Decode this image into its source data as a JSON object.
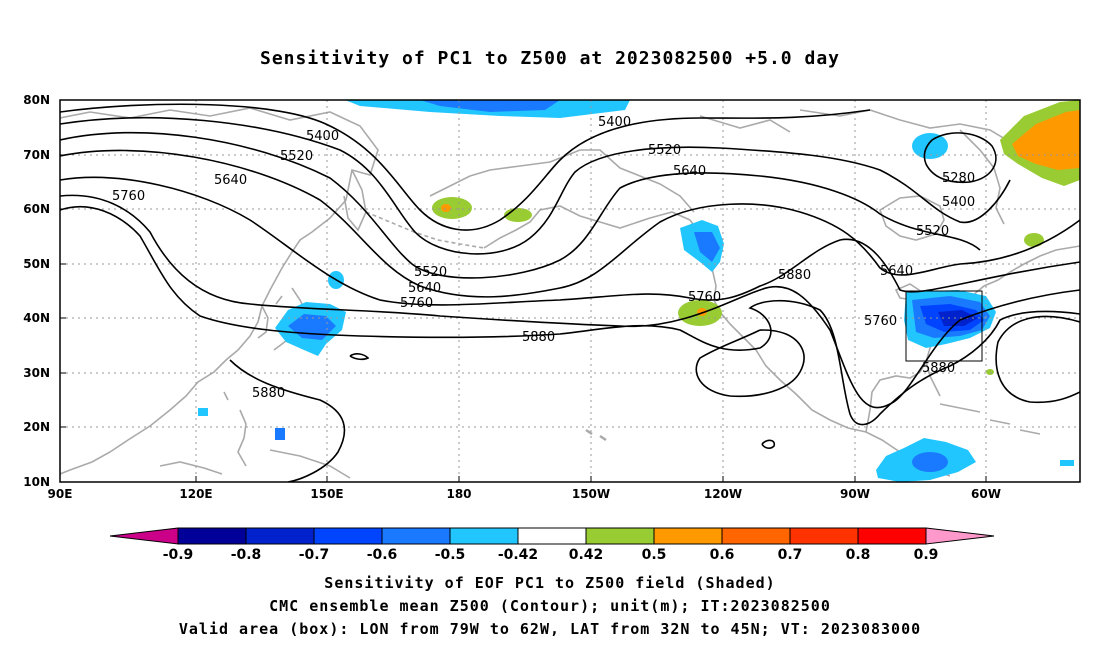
{
  "title": "Sensitivity of PC1 to Z500 at 2023082500 +5.0 day",
  "map": {
    "lat_labels": [
      "80N",
      "70N",
      "60N",
      "50N",
      "40N",
      "30N",
      "20N",
      "10N"
    ],
    "lon_labels": [
      "90E",
      "120E",
      "150E",
      "180",
      "150W",
      "120W",
      "90W",
      "60W"
    ],
    "contour_labels": [
      {
        "text": "5400"
      },
      {
        "text": "5520"
      },
      {
        "text": "5640"
      },
      {
        "text": "5760"
      },
      {
        "text": "5400"
      },
      {
        "text": "5520"
      },
      {
        "text": "5640"
      },
      {
        "text": "5520"
      },
      {
        "text": "5640"
      },
      {
        "text": "5760"
      },
      {
        "text": "5880"
      },
      {
        "text": "5880"
      },
      {
        "text": "5760"
      },
      {
        "text": "5880"
      },
      {
        "text": "5280"
      },
      {
        "text": "5400"
      },
      {
        "text": "5520"
      },
      {
        "text": "5640"
      },
      {
        "text": "5760"
      },
      {
        "text": "5880"
      }
    ],
    "valid_box": {
      "lon_west": -79,
      "lon_east": -62,
      "lat_south": 32,
      "lat_north": 45
    }
  },
  "colorbar": {
    "labels": [
      "-0.9",
      "-0.8",
      "-0.7",
      "-0.6",
      "-0.5",
      "-0.42",
      "0.42",
      "0.5",
      "0.6",
      "0.7",
      "0.8",
      "0.9"
    ],
    "colors": [
      "#000099",
      "#0022cc",
      "#0044ff",
      "#1a7aff",
      "#22c6ff",
      "#ffffff",
      "#99cc33",
      "#ff9900",
      "#ff6600",
      "#ff3300",
      "#ff0000"
    ],
    "low_end_color": "#cc0088",
    "high_end_color": "#ff99cc"
  },
  "captions": {
    "line1": "Sensitivity of EOF PC1 to Z500 field (Shaded)",
    "line2": "CMC ensemble mean Z500 (Contour); unit(m); IT:2023082500",
    "line3": "Valid area (box): LON from 79W to 62W, LAT from 32N to 45N; VT: 2023083000"
  }
}
